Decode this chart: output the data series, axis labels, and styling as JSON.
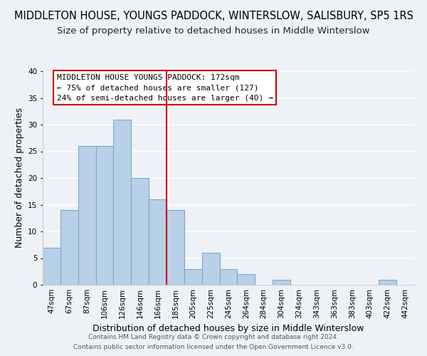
{
  "title": "MIDDLETON HOUSE, YOUNGS PADDOCK, WINTERSLOW, SALISBURY, SP5 1RS",
  "subtitle": "Size of property relative to detached houses in Middle Winterslow",
  "xlabel": "Distribution of detached houses by size in Middle Winterslow",
  "ylabel": "Number of detached properties",
  "bin_labels": [
    "47sqm",
    "67sqm",
    "87sqm",
    "106sqm",
    "126sqm",
    "146sqm",
    "166sqm",
    "185sqm",
    "205sqm",
    "225sqm",
    "245sqm",
    "264sqm",
    "284sqm",
    "304sqm",
    "324sqm",
    "343sqm",
    "363sqm",
    "383sqm",
    "403sqm",
    "422sqm",
    "442sqm"
  ],
  "bar_heights": [
    7,
    14,
    26,
    26,
    31,
    20,
    16,
    14,
    3,
    6,
    3,
    2,
    0,
    1,
    0,
    0,
    0,
    0,
    0,
    1,
    0
  ],
  "bar_color": "#b8d0e8",
  "bar_edge_color": "#7aaac8",
  "highlight_line_color": "#cc0000",
  "ylim": [
    0,
    40
  ],
  "yticks": [
    0,
    5,
    10,
    15,
    20,
    25,
    30,
    35,
    40
  ],
  "annotation_line1": "MIDDLETON HOUSE YOUNGS PADDOCK: 172sqm",
  "annotation_line2": "← 75% of detached houses are smaller (127)",
  "annotation_line3": "24% of semi-detached houses are larger (40) →",
  "annotation_box_color": "#ffffff",
  "annotation_box_edge": "#cc0000",
  "footer_line1": "Contains HM Land Registry data © Crown copyright and database right 2024.",
  "footer_line2": "Contains public sector information licensed under the Open Government Licence v3.0.",
  "background_color": "#eef2f7",
  "grid_color": "#ffffff",
  "title_fontsize": 10.5,
  "subtitle_fontsize": 9.5,
  "axis_label_fontsize": 9,
  "tick_fontsize": 7.5,
  "footer_fontsize": 6.5
}
